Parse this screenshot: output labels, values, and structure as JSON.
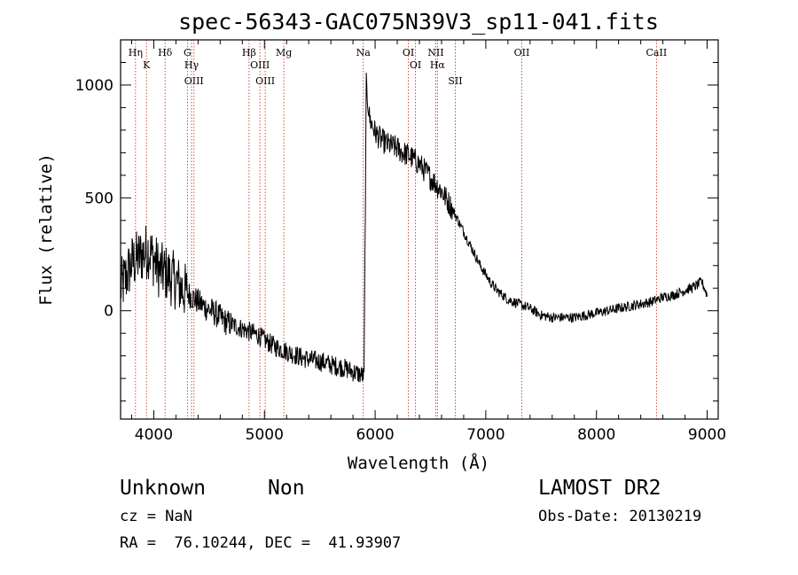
{
  "chart_data": {
    "type": "line",
    "title": "spec-56343-GAC075N39V3_sp11-041.fits",
    "xlabel": "Wavelength (Å)",
    "ylabel": "Flux (relative)",
    "xlim": [
      3700,
      9100
    ],
    "ylim": [
      -480,
      1200
    ],
    "x_ticks": [
      4000,
      5000,
      6000,
      7000,
      8000,
      9000
    ],
    "y_ticks": [
      0,
      500,
      1000
    ],
    "grid": false,
    "line_color": "#000000",
    "marker_line_color": "#cc2200",
    "series": [
      {
        "x": [
          3700,
          3750,
          3800,
          3850,
          3900,
          3950,
          4000,
          4050,
          4100,
          4150,
          4200,
          4250,
          4300,
          4350,
          4400,
          4450,
          4500,
          4550,
          4600,
          4650,
          4700,
          4750,
          4800,
          4850,
          4900,
          4950,
          5000,
          5050,
          5100,
          5150,
          5200,
          5250,
          5300,
          5350,
          5400,
          5450,
          5500,
          5550,
          5600,
          5650,
          5700,
          5750,
          5800,
          5850,
          5900,
          5920,
          5940,
          5950,
          6000,
          6050,
          6100,
          6150,
          6200,
          6250,
          6300,
          6350,
          6400,
          6450,
          6500,
          6550,
          6600,
          6650,
          6700,
          6750,
          6800,
          6850,
          6900,
          6950,
          7000,
          7050,
          7100,
          7150,
          7200,
          7300,
          7400,
          7500,
          7600,
          7700,
          7800,
          7900,
          8000,
          8100,
          8200,
          8300,
          8400,
          8500,
          8600,
          8700,
          8800,
          8900,
          8950,
          9000
        ],
        "y": [
          100,
          150,
          210,
          230,
          250,
          270,
          230,
          180,
          170,
          150,
          130,
          100,
          80,
          60,
          40,
          20,
          5,
          -10,
          -30,
          -50,
          -60,
          -70,
          -80,
          -90,
          -100,
          -110,
          -130,
          -145,
          -160,
          -170,
          -180,
          -190,
          -200,
          -210,
          -215,
          -220,
          -225,
          -230,
          -240,
          -245,
          -250,
          -260,
          -270,
          -280,
          -290,
          1000,
          900,
          850,
          790,
          760,
          740,
          730,
          720,
          700,
          690,
          670,
          650,
          620,
          590,
          560,
          530,
          490,
          450,
          400,
          350,
          300,
          250,
          200,
          160,
          120,
          90,
          70,
          50,
          30,
          10,
          -20,
          -30,
          -30,
          -30,
          -20,
          -10,
          0,
          10,
          20,
          30,
          40,
          60,
          70,
          90,
          110,
          130,
          70
        ]
      }
    ],
    "line_markers": [
      {
        "wavelength": 3835,
        "label": "Hη"
      },
      {
        "wavelength": 3934,
        "label": "K"
      },
      {
        "wavelength": 4102,
        "label": "Hδ"
      },
      {
        "wavelength": 4304,
        "label": "G"
      },
      {
        "wavelength": 4341,
        "label": "Hγ"
      },
      {
        "wavelength": 4363,
        "label": "OIII"
      },
      {
        "wavelength": 4861,
        "label": "Hβ"
      },
      {
        "wavelength": 4959,
        "label": "OIII"
      },
      {
        "wavelength": 5007,
        "label": "OIII"
      },
      {
        "wavelength": 5175,
        "label": "Mg"
      },
      {
        "wavelength": 5893,
        "label": "Na"
      },
      {
        "wavelength": 6300,
        "label": "OI"
      },
      {
        "wavelength": 6364,
        "label": "OI"
      },
      {
        "wavelength": 6548,
        "label": "NII"
      },
      {
        "wavelength": 6563,
        "label": "Hα"
      },
      {
        "wavelength": 6724,
        "label": "SII"
      },
      {
        "wavelength": 7325,
        "label": "OII"
      },
      {
        "wavelength": 8542,
        "label": "CaII"
      }
    ]
  },
  "footer": {
    "class_label": "Unknown",
    "subclass_label": "Non",
    "cz_text": "cz = NaN",
    "coords_text": "RA =  76.10244, DEC =  41.93907",
    "survey_text": "LAMOST DR2",
    "obsdate_text": "Obs-Date: 20130219"
  }
}
